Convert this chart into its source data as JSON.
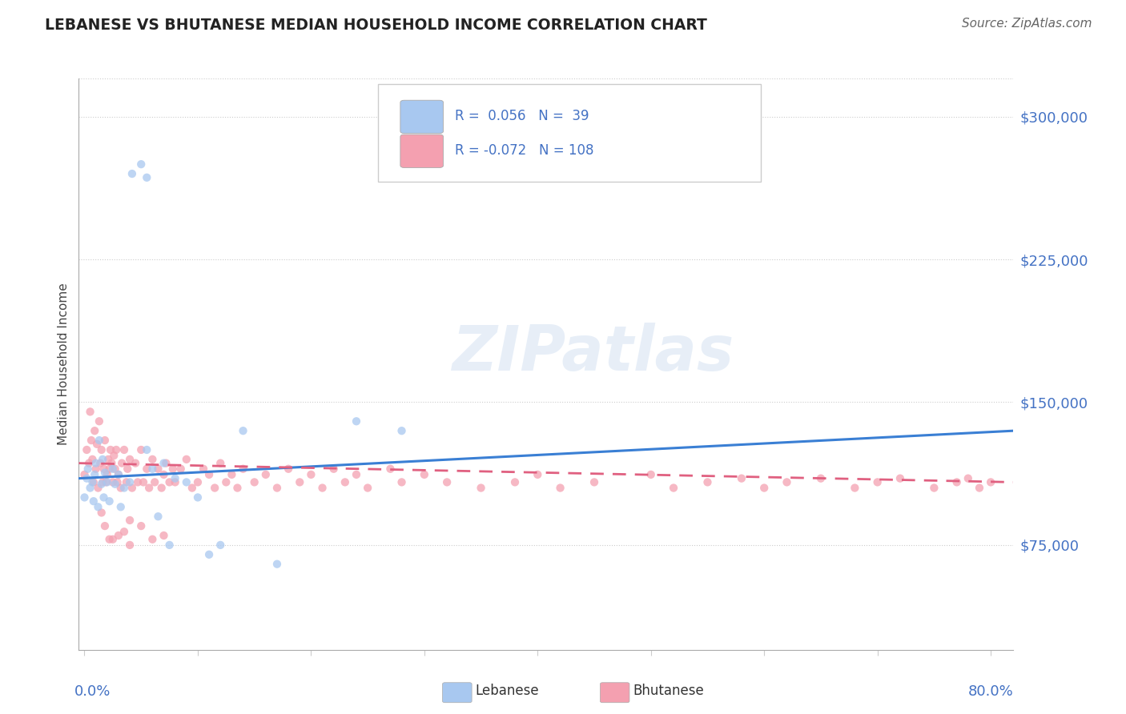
{
  "title": "LEBANESE VS BHUTANESE MEDIAN HOUSEHOLD INCOME CORRELATION CHART",
  "source": "Source: ZipAtlas.com",
  "ylabel": "Median Household Income",
  "ylim": [
    20000,
    320000
  ],
  "xlim": [
    -0.005,
    0.82
  ],
  "color_lebanese": "#a8c8f0",
  "color_bhutanese": "#f4a0b0",
  "color_line_lebanese": "#3a7fd4",
  "color_line_bhutanese": "#e06080",
  "color_axis_text": "#4472c4",
  "background": "#ffffff",
  "watermark": "ZIPatlas",
  "yticks": [
    75000,
    150000,
    225000,
    300000
  ],
  "ytick_labels": [
    "$75,000",
    "$150,000",
    "$225,000",
    "$300,000"
  ],
  "lebanese_x": [
    0.0,
    0.002,
    0.003,
    0.005,
    0.007,
    0.008,
    0.009,
    0.01,
    0.012,
    0.013,
    0.015,
    0.016,
    0.017,
    0.018,
    0.02,
    0.022,
    0.025,
    0.027,
    0.03,
    0.032,
    0.035,
    0.04,
    0.042,
    0.05,
    0.055,
    0.055,
    0.06,
    0.065,
    0.07,
    0.075,
    0.08,
    0.09,
    0.1,
    0.11,
    0.12,
    0.14,
    0.17,
    0.24,
    0.28
  ],
  "lebanese_y": [
    100000,
    110000,
    115000,
    105000,
    108000,
    98000,
    112000,
    118000,
    95000,
    130000,
    107000,
    120000,
    100000,
    113000,
    108000,
    98000,
    115000,
    107000,
    112000,
    95000,
    105000,
    108000,
    270000,
    275000,
    268000,
    125000,
    115000,
    90000,
    118000,
    75000,
    110000,
    108000,
    100000,
    70000,
    75000,
    135000,
    65000,
    140000,
    135000
  ],
  "bhutanese_x": [
    0.0,
    0.002,
    0.004,
    0.005,
    0.006,
    0.007,
    0.008,
    0.009,
    0.01,
    0.011,
    0.012,
    0.013,
    0.014,
    0.015,
    0.016,
    0.017,
    0.018,
    0.019,
    0.02,
    0.021,
    0.022,
    0.023,
    0.024,
    0.025,
    0.026,
    0.027,
    0.028,
    0.029,
    0.03,
    0.032,
    0.033,
    0.035,
    0.037,
    0.038,
    0.04,
    0.042,
    0.045,
    0.047,
    0.05,
    0.052,
    0.055,
    0.057,
    0.06,
    0.062,
    0.065,
    0.068,
    0.07,
    0.072,
    0.075,
    0.078,
    0.08,
    0.085,
    0.09,
    0.095,
    0.1,
    0.105,
    0.11,
    0.115,
    0.12,
    0.125,
    0.13,
    0.135,
    0.14,
    0.15,
    0.16,
    0.17,
    0.18,
    0.19,
    0.2,
    0.21,
    0.22,
    0.23,
    0.24,
    0.25,
    0.27,
    0.28,
    0.3,
    0.32,
    0.35,
    0.38,
    0.4,
    0.42,
    0.45,
    0.5,
    0.52,
    0.55,
    0.58,
    0.6,
    0.62,
    0.65,
    0.68,
    0.7,
    0.72,
    0.75,
    0.77,
    0.78,
    0.79,
    0.8,
    0.04,
    0.025,
    0.035,
    0.015,
    0.018,
    0.022,
    0.03,
    0.04,
    0.05,
    0.06,
    0.07
  ],
  "bhutanese_y": [
    112000,
    125000,
    118000,
    145000,
    130000,
    120000,
    108000,
    135000,
    115000,
    128000,
    105000,
    140000,
    118000,
    125000,
    108000,
    115000,
    130000,
    108000,
    112000,
    120000,
    115000,
    125000,
    118000,
    108000,
    122000,
    115000,
    125000,
    108000,
    112000,
    105000,
    118000,
    125000,
    108000,
    115000,
    120000,
    105000,
    118000,
    108000,
    125000,
    108000,
    115000,
    105000,
    120000,
    108000,
    115000,
    105000,
    112000,
    118000,
    108000,
    115000,
    108000,
    115000,
    120000,
    105000,
    108000,
    115000,
    112000,
    105000,
    118000,
    108000,
    112000,
    105000,
    115000,
    108000,
    112000,
    105000,
    115000,
    108000,
    112000,
    105000,
    115000,
    108000,
    112000,
    105000,
    115000,
    108000,
    112000,
    108000,
    105000,
    108000,
    112000,
    105000,
    108000,
    112000,
    105000,
    108000,
    110000,
    105000,
    108000,
    110000,
    105000,
    108000,
    110000,
    105000,
    108000,
    110000,
    105000,
    108000,
    88000,
    78000,
    82000,
    92000,
    85000,
    78000,
    80000,
    75000,
    85000,
    78000,
    80000
  ]
}
